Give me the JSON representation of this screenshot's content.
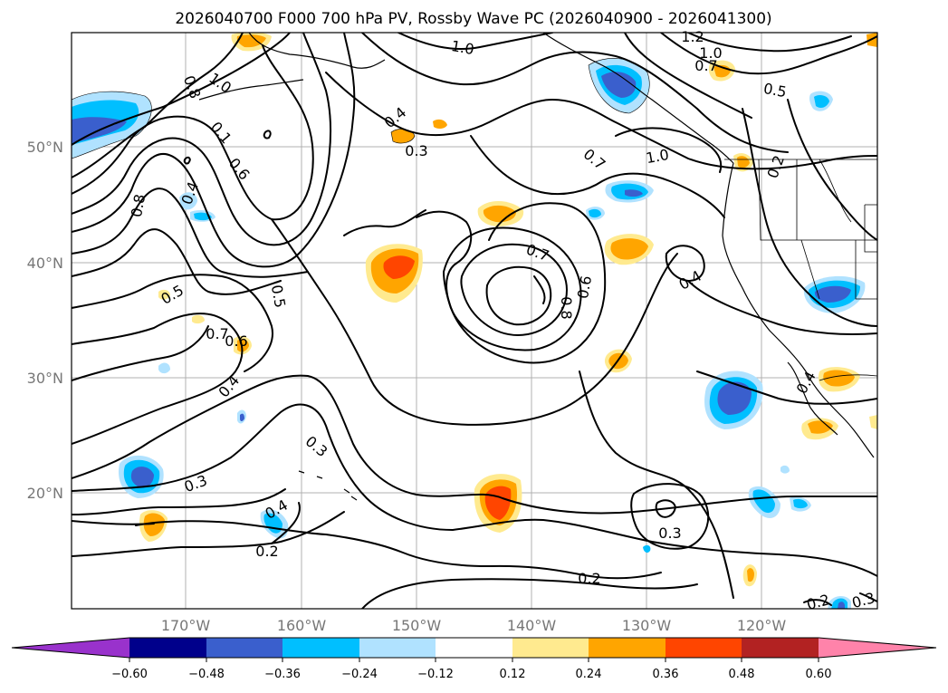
{
  "title": "2026040700 F000 700 hPa PV, Rossby Wave PC (2026040900 - 2026041300)",
  "lon_labels": [
    "170°W",
    "160°W",
    "150°W",
    "140°W",
    "130°W",
    "120°W"
  ],
  "lat_labels": [
    "50°N",
    "40°N",
    "30°N",
    "20°N"
  ],
  "colorbar": {
    "tick_labels": [
      "−0.60",
      "−0.48",
      "−0.36",
      "−0.24",
      "−0.12",
      "0.12",
      "0.24",
      "0.36",
      "0.48",
      "0.60"
    ],
    "colors": [
      "#9932cc",
      "#00008b",
      "#3a5fcd",
      "#00bfff",
      "#b0e2ff",
      "#ffffff",
      "#ffea8f",
      "#ffa500",
      "#ff4500",
      "#b22222",
      "#ff83aa"
    ]
  },
  "contour_labels": [
    "1.0",
    "0.8",
    "0.1",
    "0.6",
    "0.4",
    "0.8",
    "0.4",
    "0.5",
    "0.7",
    "0.6",
    "0.4",
    "0.5",
    "0.3",
    "0.3",
    "0.4",
    "0.2",
    "0.3",
    "0.7",
    "0.8",
    "0.6",
    "0.7",
    "1.0",
    "1.2",
    "1.0",
    "0.7",
    "0.5",
    "1.0",
    "0.2",
    "0.4",
    "0.3",
    "0.2",
    "0.3",
    "0.2",
    "0.4"
  ]
}
